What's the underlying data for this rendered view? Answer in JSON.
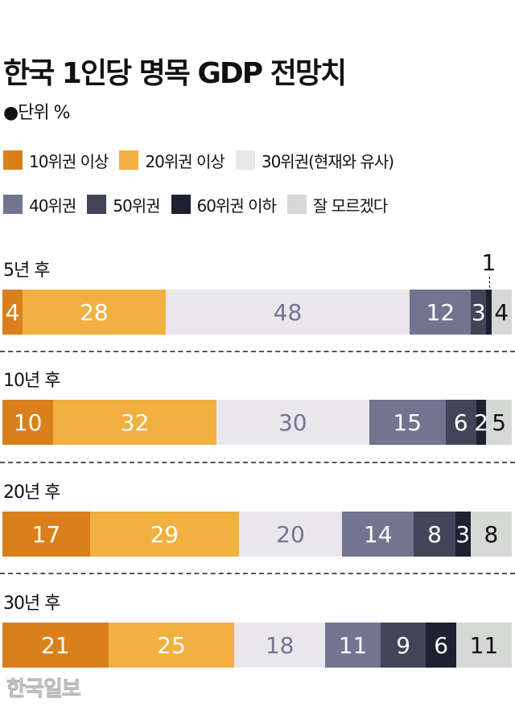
{
  "header": {
    "title": "한국 1인당 명목 GDP 전망치",
    "unit": "●단위 %"
  },
  "legend": [
    {
      "label": "10위권 이상",
      "color": "#D9801C"
    },
    {
      "label": "20위권 이상",
      "color": "#F2B040"
    },
    {
      "label": "30위권(현재와 유사)",
      "color": "#E9E7EC"
    },
    {
      "label": "40위권",
      "color": "#717590"
    },
    {
      "label": "50위권",
      "color": "#424558"
    },
    {
      "label": "60위권 이하",
      "color": "#1F2030"
    },
    {
      "label": "잘 모르겠다",
      "color": "#D6D8D6"
    }
  ],
  "watermark": "한국일보",
  "chart_data": {
    "type": "bar",
    "orientation": "horizontal",
    "stacked": true,
    "title": "한국 1인당 명목 GDP 전망치",
    "subtitle": "단위 %",
    "xlabel": "",
    "ylabel": "",
    "legend_position": "top",
    "grid": false,
    "categories": [
      "5년 후",
      "10년 후",
      "20년 후",
      "30년 후"
    ],
    "series": [
      {
        "name": "10위권 이상",
        "color": "#D9801C",
        "values": [
          4,
          10,
          17,
          21
        ]
      },
      {
        "name": "20위권 이상",
        "color": "#F2B040",
        "values": [
          28,
          32,
          29,
          25
        ]
      },
      {
        "name": "30위권(현재와 유사)",
        "color": "#E9E7EC",
        "values": [
          48,
          30,
          20,
          18
        ]
      },
      {
        "name": "40위권",
        "color": "#717590",
        "values": [
          12,
          15,
          14,
          11
        ]
      },
      {
        "name": "50위권",
        "color": "#424558",
        "values": [
          3,
          6,
          8,
          9
        ]
      },
      {
        "name": "60위권 이하",
        "color": "#1F2030",
        "values": [
          1,
          2,
          3,
          6
        ]
      },
      {
        "name": "잘 모르겠다",
        "color": "#D6D8D6",
        "values": [
          4,
          5,
          8,
          11
        ]
      }
    ],
    "annotations": [
      {
        "category": "5년 후",
        "series": "60위권 이하",
        "text": "1",
        "position": "above with dashed leader"
      }
    ]
  }
}
